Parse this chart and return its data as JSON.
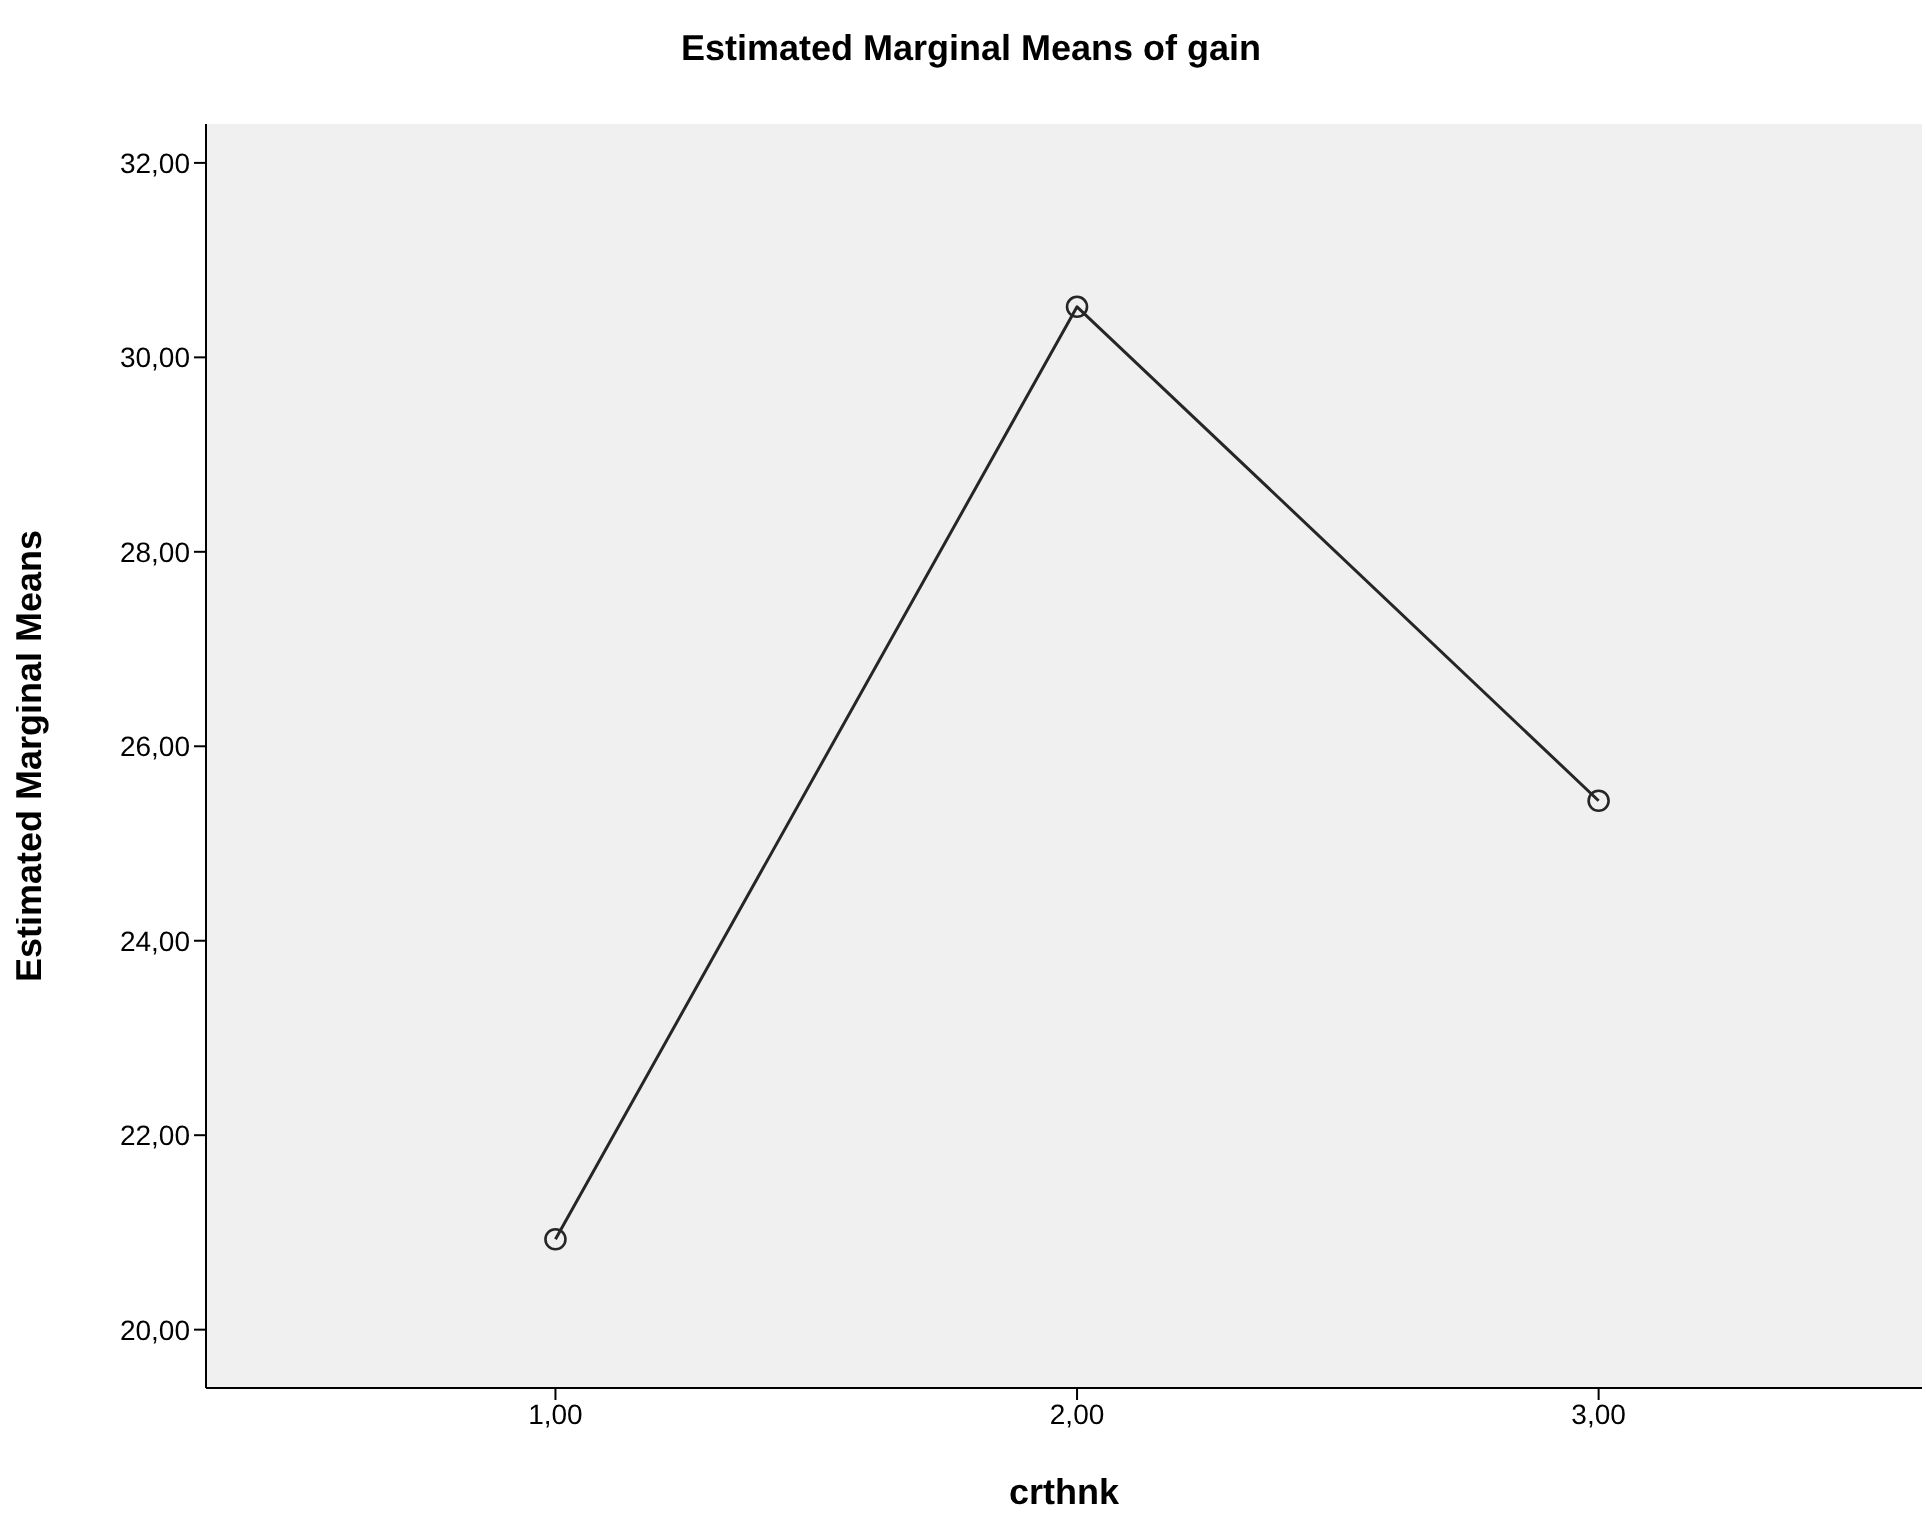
{
  "chart_data": {
    "type": "line",
    "title": "Estimated Marginal Means of gain",
    "xlabel": "crthnk",
    "ylabel": "Estimated Marginal Means",
    "categories": [
      "1,00",
      "2,00",
      "3,00"
    ],
    "series": [
      {
        "color": "#262626",
        "values": [
          20.93,
          30.52,
          25.44
        ]
      }
    ],
    "ylim": [
      19.4,
      32.4
    ],
    "yticks": [
      {
        "value": 20,
        "label": "20,00"
      },
      {
        "value": 22,
        "label": "22,00"
      },
      {
        "value": 24,
        "label": "24,00"
      },
      {
        "value": 26,
        "label": "26,00"
      },
      {
        "value": 28,
        "label": "28,00"
      },
      {
        "value": 30,
        "label": "30,00"
      },
      {
        "value": 32,
        "label": "32,00"
      }
    ],
    "marker": "circle",
    "line_style": "solid",
    "legend": false,
    "grid": false
  }
}
